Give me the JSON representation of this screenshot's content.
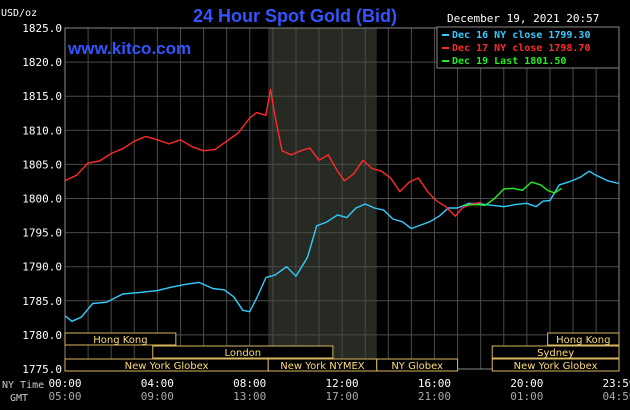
{
  "chart_data": {
    "type": "line",
    "title": "24 Hour Spot Gold (Bid)",
    "website": "www.kitco.com",
    "timestamp": "December 19, 2021 20:57",
    "y_unit": "USD/oz",
    "ylim": [
      1775.0,
      1825.0
    ],
    "y_ticks": [
      "1825.0",
      "1820.0",
      "1815.0",
      "1810.0",
      "1805.0",
      "1800.0",
      "1795.0",
      "1790.0",
      "1785.0",
      "1780.0",
      "1775.0"
    ],
    "x_time_labels": {
      "ny_label": "NY Time",
      "gmt_label": "GMT",
      "ny": [
        "00:00",
        "04:00",
        "08:00",
        "12:00",
        "16:00",
        "20:00",
        "23:59"
      ],
      "gmt": [
        "05:00",
        "09:00",
        "13:00",
        "17:00",
        "21:00",
        "01:00",
        "04:59"
      ]
    },
    "sessions": [
      {
        "label": "Hong Kong",
        "row": 0,
        "start": 0,
        "end": 4.8
      },
      {
        "label": "Hong Kong",
        "row": 0,
        "start": 20.9,
        "end": 23.99
      },
      {
        "label": "London",
        "row": 1,
        "start": 3.8,
        "end": 11.6
      },
      {
        "label": "Sydney",
        "row": 1,
        "start": 18.5,
        "end": 23.99
      },
      {
        "label": "New York Globex",
        "row": 2,
        "start": 0,
        "end": 8.8
      },
      {
        "label": "New York NYMEX",
        "row": 2,
        "start": 8.8,
        "end": 13.5
      },
      {
        "label": "NY Globex",
        "row": 2,
        "start": 13.5,
        "end": 17.0
      },
      {
        "label": "New York Globex",
        "row": 2,
        "start": 18.5,
        "end": 23.99
      }
    ],
    "shaded_region": [
      8.8,
      13.5
    ],
    "grid": true,
    "legend_position": "top-right",
    "series": [
      {
        "name": "Dec 16 NY close 1799.30",
        "color": "#33ccff",
        "points": [
          [
            0,
            1782.8
          ],
          [
            0.3,
            1782.0
          ],
          [
            0.7,
            1782.6
          ],
          [
            1.2,
            1784.6
          ],
          [
            1.8,
            1784.8
          ],
          [
            2.5,
            1786.0
          ],
          [
            3.2,
            1786.2
          ],
          [
            4.0,
            1786.5
          ],
          [
            4.6,
            1787.0
          ],
          [
            5.2,
            1787.4
          ],
          [
            5.8,
            1787.7
          ],
          [
            6.4,
            1786.8
          ],
          [
            6.9,
            1786.6
          ],
          [
            7.3,
            1785.6
          ],
          [
            7.7,
            1783.6
          ],
          [
            8.0,
            1783.4
          ],
          [
            8.3,
            1785.4
          ],
          [
            8.7,
            1788.4
          ],
          [
            9.1,
            1788.8
          ],
          [
            9.6,
            1790.0
          ],
          [
            10.0,
            1788.6
          ],
          [
            10.5,
            1791.4
          ],
          [
            10.9,
            1796.0
          ],
          [
            11.3,
            1796.5
          ],
          [
            11.8,
            1797.6
          ],
          [
            12.2,
            1797.2
          ],
          [
            12.6,
            1798.6
          ],
          [
            13.0,
            1799.2
          ],
          [
            13.4,
            1798.6
          ],
          [
            13.8,
            1798.3
          ],
          [
            14.2,
            1797.0
          ],
          [
            14.6,
            1796.6
          ],
          [
            15.0,
            1795.6
          ],
          [
            15.4,
            1796.1
          ],
          [
            15.8,
            1796.6
          ],
          [
            16.2,
            1797.4
          ],
          [
            16.6,
            1798.6
          ],
          [
            17.0,
            1798.6
          ],
          [
            17.5,
            1799.3
          ],
          [
            18.0,
            1799.2
          ],
          [
            18.5,
            1799.0
          ],
          [
            19.0,
            1798.8
          ],
          [
            19.5,
            1799.1
          ],
          [
            20.0,
            1799.3
          ],
          [
            20.4,
            1798.8
          ],
          [
            20.7,
            1799.6
          ],
          [
            21.0,
            1799.7
          ],
          [
            21.4,
            1802.0
          ],
          [
            21.8,
            1802.4
          ],
          [
            22.3,
            1803.1
          ],
          [
            22.7,
            1804.0
          ],
          [
            23.0,
            1803.4
          ],
          [
            23.5,
            1802.6
          ],
          [
            23.99,
            1802.2
          ]
        ]
      },
      {
        "name": "Dec 17 NY close 1798.70",
        "color": "#ff2a2a",
        "points": [
          [
            0,
            1802.6
          ],
          [
            0.5,
            1803.4
          ],
          [
            1.0,
            1805.2
          ],
          [
            1.5,
            1805.5
          ],
          [
            2.0,
            1806.6
          ],
          [
            2.5,
            1807.3
          ],
          [
            3.0,
            1808.4
          ],
          [
            3.5,
            1809.1
          ],
          [
            4.0,
            1808.6
          ],
          [
            4.5,
            1808.0
          ],
          [
            5.0,
            1808.6
          ],
          [
            5.5,
            1807.6
          ],
          [
            6.0,
            1807.0
          ],
          [
            6.5,
            1807.2
          ],
          [
            7.0,
            1808.4
          ],
          [
            7.5,
            1809.6
          ],
          [
            8.0,
            1811.8
          ],
          [
            8.3,
            1812.6
          ],
          [
            8.7,
            1812.2
          ],
          [
            8.9,
            1816.0
          ],
          [
            9.1,
            1812.0
          ],
          [
            9.4,
            1807.0
          ],
          [
            9.8,
            1806.4
          ],
          [
            10.2,
            1807.0
          ],
          [
            10.6,
            1807.4
          ],
          [
            11.0,
            1805.6
          ],
          [
            11.4,
            1806.4
          ],
          [
            11.8,
            1804.0
          ],
          [
            12.1,
            1802.6
          ],
          [
            12.5,
            1803.6
          ],
          [
            12.9,
            1805.6
          ],
          [
            13.3,
            1804.4
          ],
          [
            13.7,
            1804.0
          ],
          [
            14.1,
            1803.0
          ],
          [
            14.5,
            1801.0
          ],
          [
            14.9,
            1802.4
          ],
          [
            15.3,
            1803.0
          ],
          [
            15.7,
            1801.0
          ],
          [
            16.1,
            1799.6
          ],
          [
            16.5,
            1798.8
          ],
          [
            16.9,
            1797.4
          ],
          [
            17.2,
            1798.6
          ],
          [
            17.6,
            1799.2
          ],
          [
            18.0,
            1799.4
          ]
        ]
      },
      {
        "name": "Dec 19 Last 1801.50",
        "color": "#22ee22",
        "points": [
          [
            17.3,
            1799.0
          ],
          [
            17.8,
            1799.1
          ],
          [
            18.2,
            1799.0
          ],
          [
            18.6,
            1800.0
          ],
          [
            19.0,
            1801.4
          ],
          [
            19.4,
            1801.5
          ],
          [
            19.8,
            1801.2
          ],
          [
            20.2,
            1802.4
          ],
          [
            20.6,
            1802.0
          ],
          [
            20.9,
            1801.2
          ],
          [
            21.2,
            1800.8
          ],
          [
            21.5,
            1801.5
          ]
        ]
      }
    ]
  }
}
